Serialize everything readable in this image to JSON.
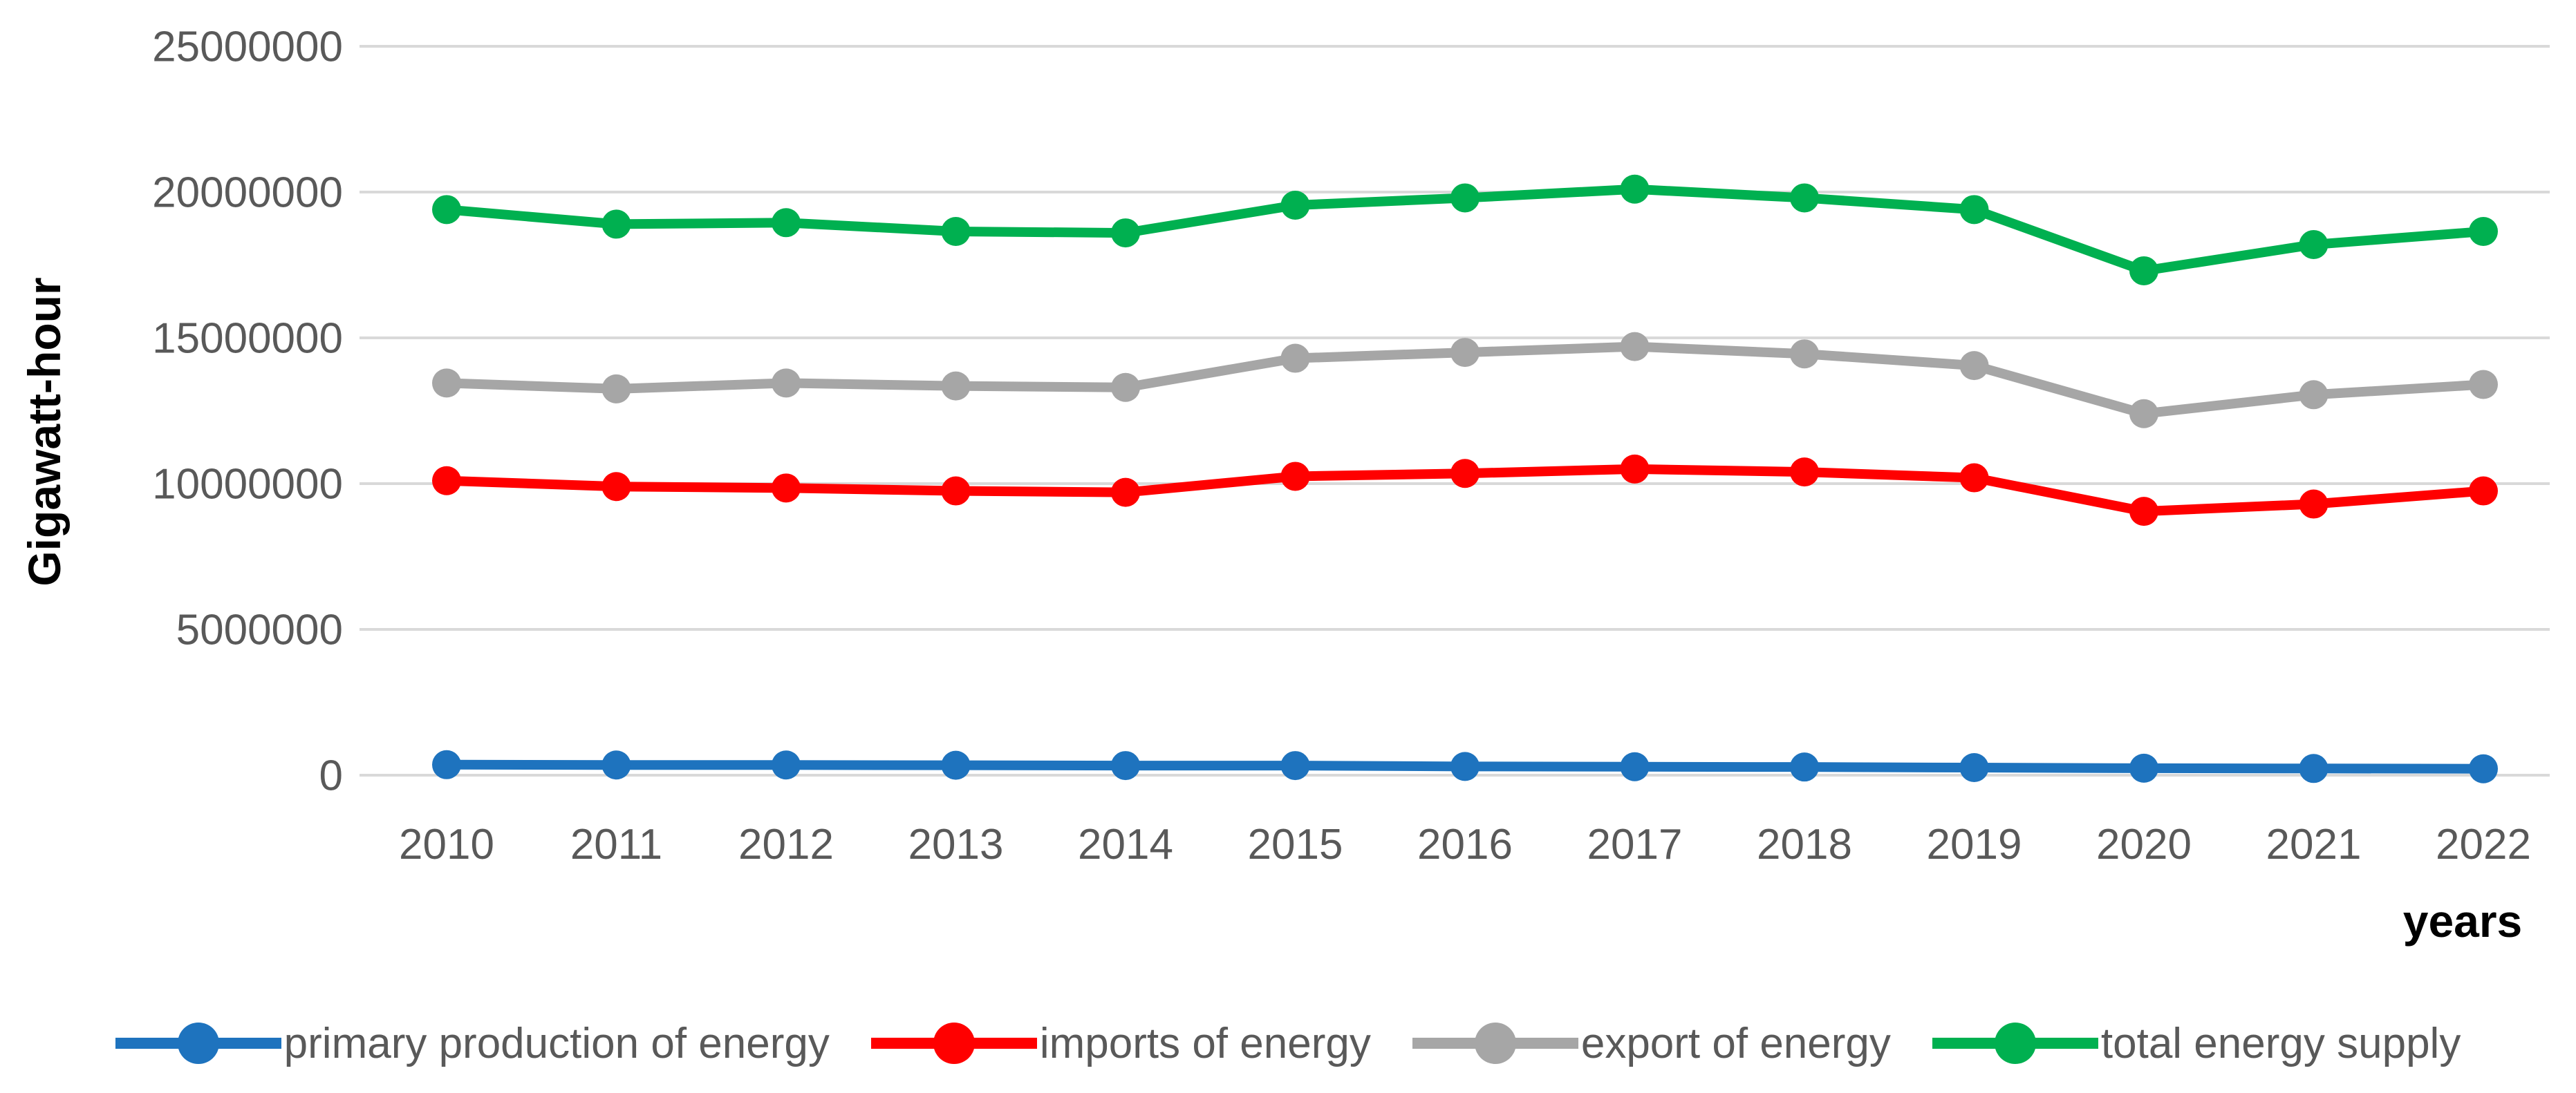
{
  "chart_data": {
    "type": "line",
    "title": "",
    "xlabel": "years",
    "ylabel": "Gigawatt-hour",
    "x": [
      2010,
      2011,
      2012,
      2013,
      2014,
      2015,
      2016,
      2017,
      2018,
      2019,
      2020,
      2021,
      2022
    ],
    "series": [
      {
        "name": "primary production of energy",
        "color": "#1E73BE",
        "values": [
          360000,
          350000,
          350000,
          340000,
          330000,
          330000,
          300000,
          290000,
          280000,
          260000,
          240000,
          230000,
          220000
        ]
      },
      {
        "name": "imports of energy",
        "color": "#FF0000",
        "values": [
          10100000,
          9900000,
          9850000,
          9750000,
          9700000,
          10250000,
          10350000,
          10500000,
          10400000,
          10200000,
          9050000,
          9300000,
          9750000
        ]
      },
      {
        "name": "export of energy",
        "color": "#A6A6A6",
        "values": [
          13450000,
          13250000,
          13450000,
          13350000,
          13300000,
          14300000,
          14500000,
          14700000,
          14450000,
          14050000,
          12400000,
          13050000,
          13400000
        ]
      },
      {
        "name": "total energy supply",
        "color": "#00B050",
        "values": [
          19400000,
          18900000,
          18950000,
          18650000,
          18600000,
          19550000,
          19800000,
          20100000,
          19800000,
          19400000,
          17300000,
          18200000,
          18650000
        ]
      }
    ],
    "ylim": [
      0,
      25000000
    ],
    "ytick_interval": 5000000,
    "yticks": [
      "0",
      "5000000",
      "10000000",
      "15000000",
      "20000000",
      "25000000"
    ],
    "xticks": [
      "2010",
      "2011",
      "2012",
      "2013",
      "2014",
      "2015",
      "2016",
      "2017",
      "2018",
      "2019",
      "2020",
      "2021",
      "2022"
    ],
    "grid": true,
    "legend_position": "bottom"
  },
  "colors": {
    "grid": "#D9D9D9",
    "axis_text": "#595959",
    "background": "#FFFFFF"
  }
}
